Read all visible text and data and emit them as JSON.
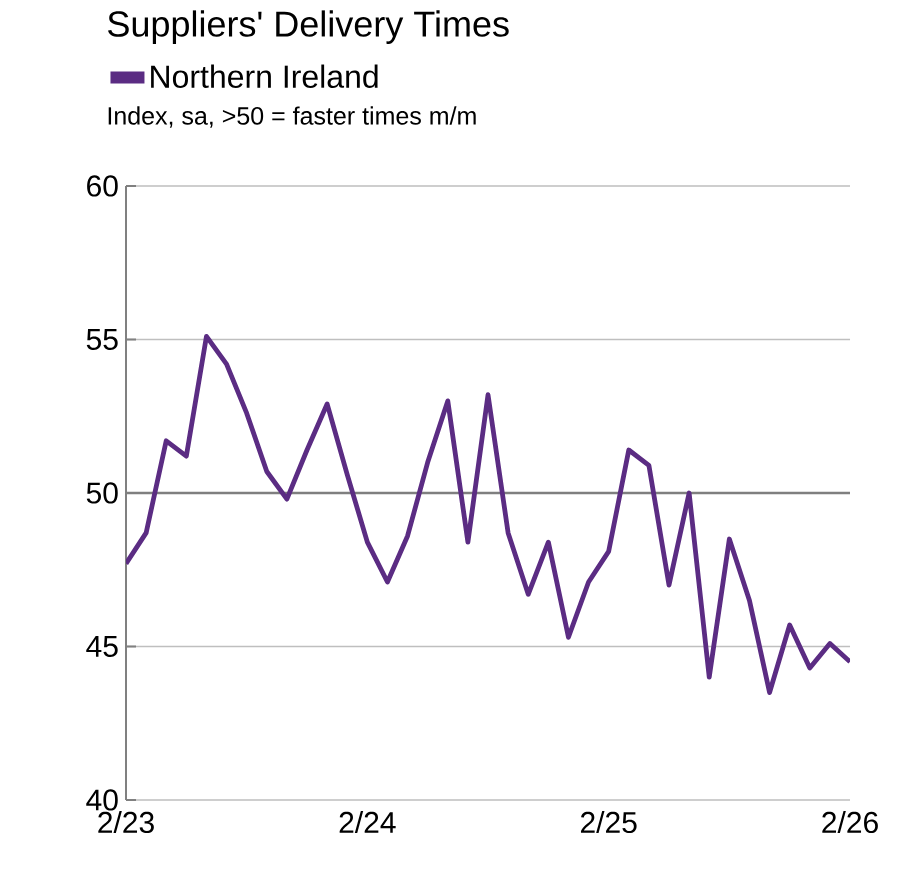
{
  "chart_data": {
    "type": "line",
    "title": "Suppliers' Delivery Times",
    "subtitle": "Index, sa, >50 = faster times m/m",
    "categories": [
      "2/23",
      null,
      null,
      null,
      null,
      null,
      null,
      null,
      null,
      null,
      null,
      null,
      "2/24",
      null,
      null,
      null,
      null,
      null,
      null,
      null,
      null,
      null,
      null,
      null,
      "2/25",
      null,
      null,
      null,
      null,
      null,
      null,
      null,
      null,
      null,
      null,
      null,
      "2/26"
    ],
    "series": [
      {
        "name": "Northern Ireland",
        "color": "#5b2c83",
        "values": [
          47.7,
          48.7,
          51.7,
          51.2,
          55.1,
          54.2,
          52.6,
          50.7,
          49.8,
          51.4,
          52.9,
          50.6,
          48.4,
          47.1,
          48.6,
          51.0,
          53.0,
          48.4,
          53.2,
          48.7,
          46.7,
          48.4,
          45.3,
          47.1,
          48.1,
          51.4,
          50.9,
          47.0,
          50.0,
          44.0,
          48.5,
          46.5,
          43.5,
          45.7,
          44.3,
          45.1,
          44.5
        ]
      }
    ],
    "ylim": [
      40,
      60
    ],
    "yticks": [
      40,
      45,
      50,
      55,
      60
    ],
    "grid": "y",
    "legend": "top left",
    "marker": "none",
    "line_style": "solid",
    "ref_lines": [
      {
        "axis": "y",
        "value": 50,
        "color": "#7f7f7f"
      }
    ]
  }
}
